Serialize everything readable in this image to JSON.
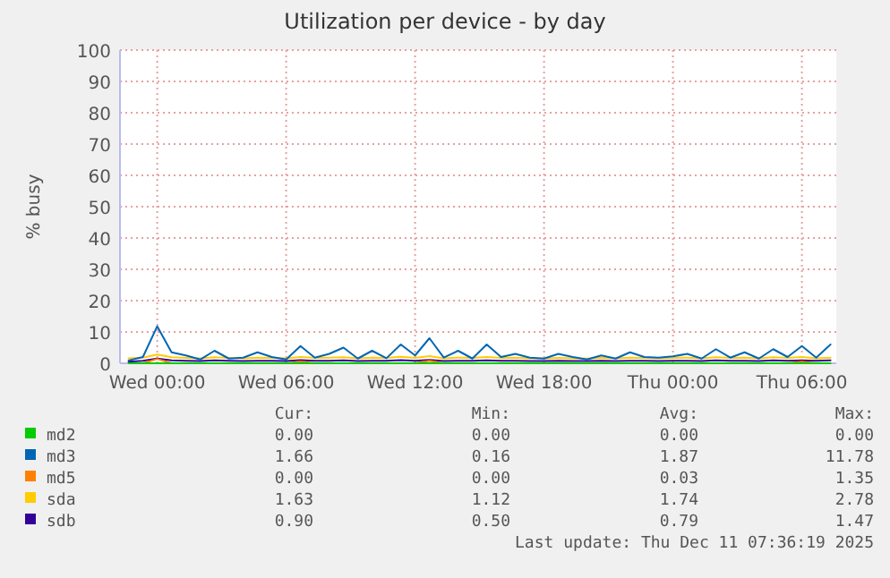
{
  "chart_data": {
    "type": "line",
    "title": "Utilization per device - by day",
    "ylabel": "% busy",
    "x": [
      "2025-12-09T22:40",
      "2025-12-09T23:20",
      "2025-12-10T00:00",
      "2025-12-10T00:40",
      "2025-12-10T01:20",
      "2025-12-10T02:00",
      "2025-12-10T02:40",
      "2025-12-10T03:20",
      "2025-12-10T04:00",
      "2025-12-10T04:40",
      "2025-12-10T05:20",
      "2025-12-10T06:00",
      "2025-12-10T06:40",
      "2025-12-10T07:20",
      "2025-12-10T08:00",
      "2025-12-10T08:40",
      "2025-12-10T09:20",
      "2025-12-10T10:00",
      "2025-12-10T10:40",
      "2025-12-10T11:20",
      "2025-12-10T12:00",
      "2025-12-10T12:40",
      "2025-12-10T13:20",
      "2025-12-10T14:00",
      "2025-12-10T14:40",
      "2025-12-10T15:20",
      "2025-12-10T16:00",
      "2025-12-10T16:40",
      "2025-12-10T17:20",
      "2025-12-10T18:00",
      "2025-12-10T18:40",
      "2025-12-10T19:20",
      "2025-12-10T20:00",
      "2025-12-10T20:40",
      "2025-12-10T21:20",
      "2025-12-10T22:00",
      "2025-12-10T22:40",
      "2025-12-10T23:20",
      "2025-12-11T00:00",
      "2025-12-11T00:40",
      "2025-12-11T01:20",
      "2025-12-11T02:00",
      "2025-12-11T02:40",
      "2025-12-11T03:20",
      "2025-12-11T04:00",
      "2025-12-11T04:40",
      "2025-12-11T05:20",
      "2025-12-11T06:00",
      "2025-12-11T06:40",
      "2025-12-11T07:20"
    ],
    "series": [
      {
        "name": "md2",
        "color": "#00cc00",
        "values": [
          0,
          0,
          0,
          0,
          0,
          0,
          0,
          0,
          0,
          0,
          0,
          0,
          0,
          0,
          0,
          0,
          0,
          0,
          0,
          0,
          0,
          0,
          0,
          0,
          0,
          0,
          0,
          0,
          0,
          0,
          0,
          0,
          0,
          0,
          0,
          0,
          0,
          0,
          0,
          0,
          0,
          0,
          0,
          0,
          0,
          0,
          0,
          0,
          0,
          0
        ]
      },
      {
        "name": "md3",
        "color": "#0066b3",
        "values": [
          0.9,
          2.0,
          11.8,
          3.5,
          2.5,
          1.2,
          4.0,
          1.5,
          1.8,
          3.5,
          2.0,
          1.2,
          5.5,
          1.8,
          3.0,
          5.0,
          1.5,
          4.0,
          1.6,
          6.0,
          2.5,
          8.0,
          1.8,
          4.0,
          1.5,
          6.0,
          2.0,
          3.0,
          1.8,
          1.5,
          3.0,
          2.0,
          1.2,
          2.5,
          1.5,
          3.5,
          2.0,
          1.8,
          2.2,
          3.0,
          1.5,
          4.5,
          1.8,
          3.5,
          1.5,
          4.5,
          2.0,
          5.5,
          1.8,
          6.0
        ]
      },
      {
        "name": "md5",
        "color": "#ff8000",
        "values": [
          null,
          0,
          1.4,
          0,
          null,
          null,
          null,
          null,
          null,
          null,
          null,
          0,
          0.5,
          0,
          null,
          null,
          null,
          null,
          null,
          null,
          0,
          0.8,
          0,
          null,
          null,
          null,
          null,
          null,
          null,
          null,
          null,
          null,
          null,
          null,
          null,
          null,
          null,
          null,
          null,
          null,
          null,
          null,
          null,
          null,
          null,
          null,
          0,
          0.5,
          0,
          null
        ]
      },
      {
        "name": "sda",
        "color": "#ffcc00",
        "values": [
          1.6,
          1.8,
          2.8,
          1.9,
          1.7,
          1.6,
          1.9,
          1.7,
          1.6,
          1.8,
          1.7,
          1.6,
          2.0,
          1.7,
          1.8,
          1.9,
          1.6,
          1.8,
          1.7,
          2.1,
          1.7,
          2.3,
          1.6,
          1.8,
          1.7,
          2.0,
          1.7,
          1.8,
          1.6,
          1.5,
          1.7,
          1.6,
          1.5,
          1.7,
          1.6,
          1.8,
          1.7,
          1.6,
          1.7,
          1.8,
          1.6,
          1.9,
          1.7,
          1.8,
          1.6,
          1.9,
          1.7,
          2.0,
          1.6,
          1.8
        ]
      },
      {
        "name": "sdb",
        "color": "#330099",
        "values": [
          0.5,
          0.8,
          1.5,
          0.9,
          0.8,
          0.7,
          0.9,
          0.8,
          0.7,
          0.8,
          0.8,
          0.7,
          1.0,
          0.8,
          0.8,
          0.9,
          0.7,
          0.8,
          0.8,
          1.0,
          0.8,
          1.1,
          0.7,
          0.8,
          0.8,
          0.9,
          0.8,
          0.8,
          0.7,
          0.7,
          0.8,
          0.7,
          0.7,
          0.8,
          0.7,
          0.8,
          0.8,
          0.7,
          0.8,
          0.8,
          0.7,
          0.9,
          0.8,
          0.8,
          0.7,
          0.9,
          0.8,
          0.9,
          0.8,
          0.9
        ]
      }
    ],
    "xlim": [
      "2025-12-09T22:16",
      "2025-12-11T07:36"
    ],
    "xticks": [
      {
        "value": "2025-12-10T00:00",
        "label": "Wed 00:00"
      },
      {
        "value": "2025-12-10T06:00",
        "label": "Wed 06:00"
      },
      {
        "value": "2025-12-10T12:00",
        "label": "Wed 12:00"
      },
      {
        "value": "2025-12-10T18:00",
        "label": "Wed 18:00"
      },
      {
        "value": "2025-12-11T00:00",
        "label": "Thu 00:00"
      },
      {
        "value": "2025-12-11T06:00",
        "label": "Thu 06:00"
      }
    ],
    "ylim": [
      0,
      100
    ],
    "yticks": [
      0,
      10,
      20,
      30,
      40,
      50,
      60,
      70,
      80,
      90,
      100
    ],
    "grid": true,
    "legend": "bottom",
    "annotations": [
      "Cur:",
      "Min:",
      "Avg:",
      "Max:",
      "0.00",
      "0.00",
      "0.00",
      "0.00",
      "1.66",
      "0.16",
      "1.87",
      "11.78",
      "0.00",
      "0.00",
      "0.03",
      "1.35",
      "1.63",
      "1.12",
      "1.74",
      "2.78",
      "0.90",
      "0.50",
      "0.79",
      "1.47",
      "Last update: Thu Dec 11 07:36:19 2025"
    ]
  }
}
